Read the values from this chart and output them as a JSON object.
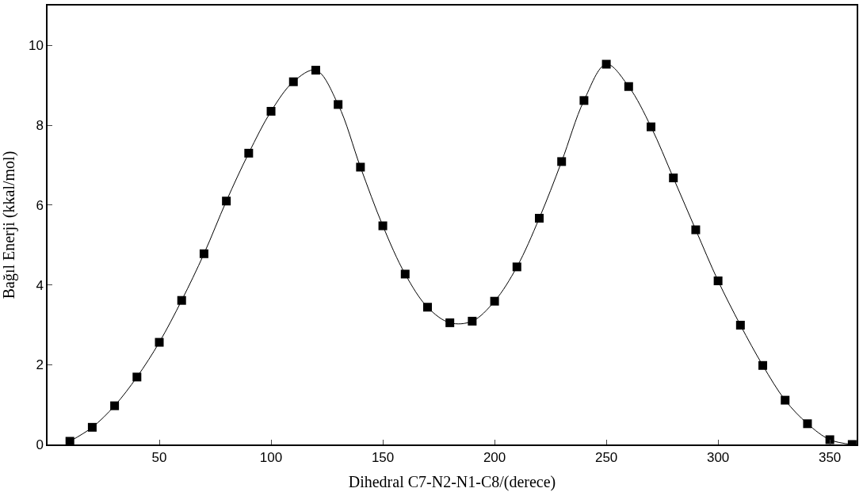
{
  "chart_data": {
    "type": "line",
    "xlabel": "Dihedral C7-N2-N1-C8/(derece)",
    "ylabel": "Bağıl Enerji (kkal/mol)",
    "x": [
      10,
      20,
      30,
      40,
      50,
      60,
      70,
      80,
      90,
      100,
      110,
      120,
      130,
      140,
      150,
      160,
      170,
      180,
      190,
      200,
      210,
      220,
      230,
      240,
      250,
      260,
      270,
      280,
      290,
      300,
      310,
      320,
      330,
      340,
      350,
      360
    ],
    "series": [
      {
        "color": "#000000",
        "values": [
          0.08,
          0.43,
          0.97,
          1.69,
          2.56,
          3.61,
          4.78,
          6.1,
          7.3,
          8.35,
          9.09,
          9.38,
          8.52,
          6.95,
          5.48,
          4.27,
          3.44,
          3.05,
          3.09,
          3.59,
          4.45,
          5.67,
          7.09,
          8.62,
          9.53,
          8.97,
          7.96,
          6.68,
          5.38,
          4.1,
          2.99,
          1.98,
          1.11,
          0.52,
          0.12,
          0.0
        ]
      }
    ],
    "xlim": [
      0,
      362
    ],
    "xticks": [
      50,
      100,
      150,
      200,
      250,
      300,
      350
    ],
    "ylim": [
      0,
      11
    ],
    "yticks": [
      0,
      2,
      4,
      6,
      8,
      10
    ],
    "legend": false,
    "marker": "square",
    "line_style": "solid"
  }
}
